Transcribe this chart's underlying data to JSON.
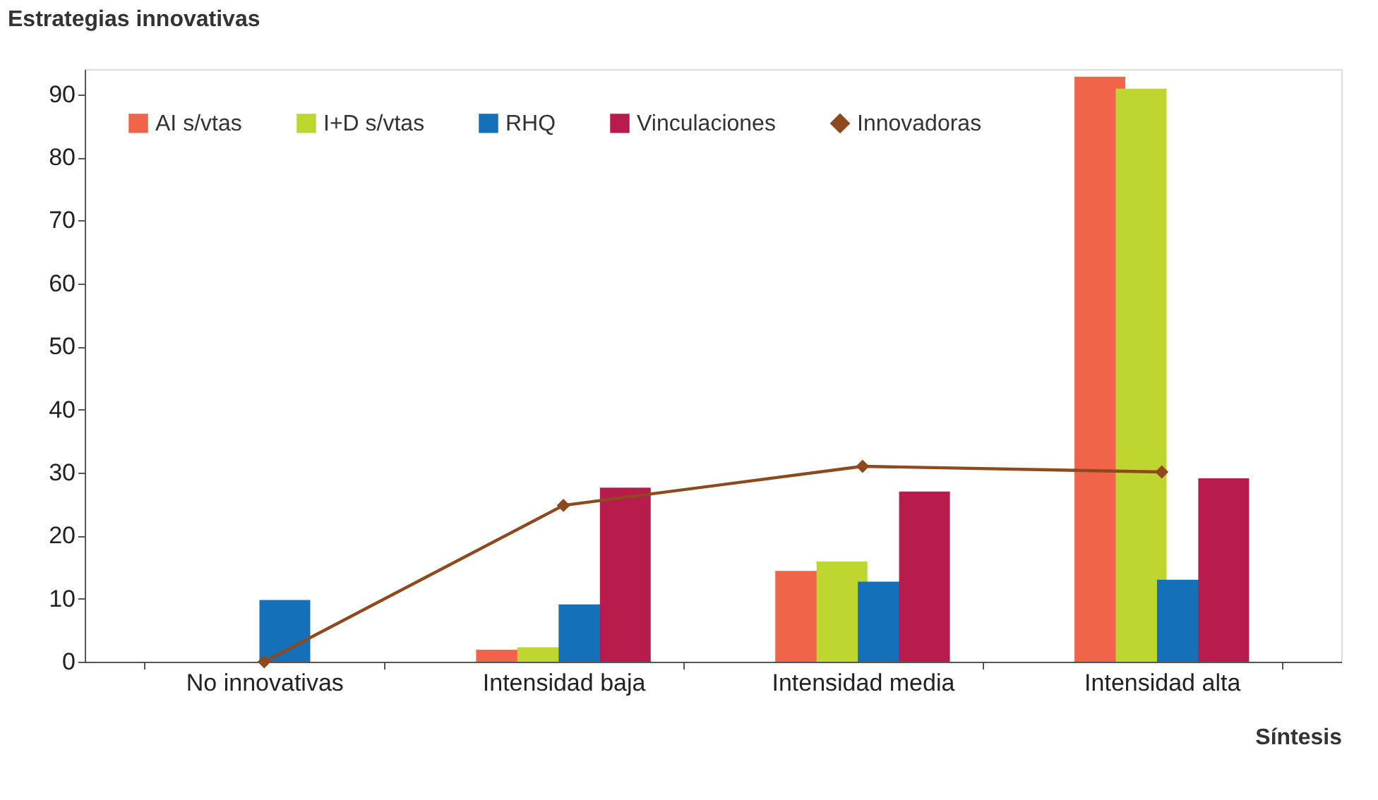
{
  "chart_data": {
    "type": "bar",
    "xlabel": "Síntesis",
    "ylabel": "Estrategias innovativas",
    "categories": [
      "No innovativas",
      "Intensidad baja",
      "Intensidad media",
      "Intensidad alta"
    ],
    "series": [
      {
        "name": "AI s/vtas",
        "color": "#f0654a",
        "values": [
          null,
          1.9,
          14.4,
          92.8
        ]
      },
      {
        "name": "I+D s/vtas",
        "color": "#bfd630",
        "values": [
          null,
          2.3,
          15.9,
          90.9
        ]
      },
      {
        "name": "RHQ",
        "color": "#1470b8",
        "values": [
          9.8,
          9.1,
          12.7,
          13.0
        ]
      },
      {
        "name": "Vinculaciones",
        "color": "#b81c4c",
        "values": [
          null,
          27.6,
          27.0,
          29.1
        ]
      },
      {
        "name": "Innovadoras",
        "type": "line",
        "color": "#8c4a1e",
        "values": [
          0,
          24.8,
          31.0,
          30.1
        ],
        "marker": "diamond",
        "line_style": "solid"
      }
    ],
    "ylim": [
      0,
      94
    ],
    "yticks": [
      0,
      10,
      20,
      30,
      40,
      50,
      60,
      70,
      80,
      90
    ],
    "grid": false,
    "legend": "top left"
  }
}
